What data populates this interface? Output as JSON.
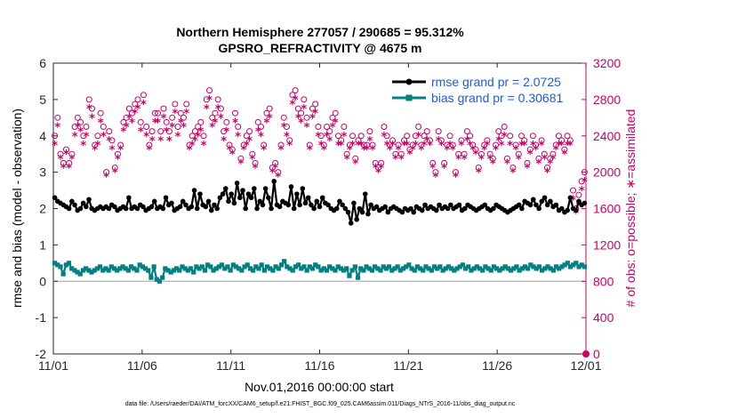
{
  "titles": {
    "line1": "Northern Hemisphere 277057 / 290685 = 95.312%",
    "line2": "GPSRO_REFRACTIVITY @ 4675 m"
  },
  "footnote": "data file: /Users/raeder/DAI/ATM_forcXX/CAM6_setup/f.e21.FHIST_BGC.f09_025.CAM6assim.011/Diags_NTrS_2016-11/obs_diag_output.nc",
  "colors": {
    "rmse": "#000000",
    "bias": "#008080",
    "obs_count": "#cc0066",
    "zero_line": "#b0b0b0"
  },
  "chart_data": {
    "type": "line",
    "xlabel": "Nov.01,2016 00:00:00 start",
    "ylabel_left": "rmse and bias (model - observation)",
    "ylabel_right": "# of obs: o=possible; ∗=assimilated",
    "x_ticks": [
      "11/01",
      "11/06",
      "11/11",
      "11/16",
      "11/21",
      "11/26",
      "12/01"
    ],
    "x_range_days": [
      0,
      30
    ],
    "ylim_left": [
      -2,
      6
    ],
    "yticks_left": [
      "-2",
      "-1",
      "0",
      "1",
      "2",
      "3",
      "4",
      "5",
      "6"
    ],
    "ylim_right": [
      0,
      3200
    ],
    "yticks_right": [
      "0",
      "400",
      "800",
      "1200",
      "1600",
      "2000",
      "2400",
      "2800",
      "3200"
    ],
    "legend_placement": "top-right",
    "series": [
      {
        "name": "rmse grand pr = 2.0725",
        "axis": "left",
        "values": [
          2.3,
          2.2,
          2.15,
          2.1,
          2.05,
          2.0,
          2.2,
          2.1,
          1.95,
          2.0,
          2.15,
          2.05,
          2.25,
          2.0,
          1.95,
          2.0,
          2.05,
          2.0,
          2.05,
          2.0,
          2.1,
          2.05,
          1.95,
          2.0,
          2.05,
          2.0,
          2.3,
          2.0,
          2.05,
          2.0,
          2.1,
          2.05,
          1.95,
          2.0,
          2.05,
          2.2,
          2.0,
          2.05,
          2.0,
          2.3,
          2.1,
          2.15,
          1.95,
          2.0,
          2.05,
          2.2,
          2.1,
          2.0,
          2.05,
          2.5,
          2.0,
          2.4,
          2.1,
          2.05,
          2.2,
          1.95,
          2.1,
          2.0,
          2.3,
          2.4,
          2.55,
          2.2,
          2.4,
          2.15,
          2.7,
          2.3,
          2.5,
          2.0,
          2.4,
          2.3,
          2.55,
          2.0,
          2.2,
          2.1,
          2.55,
          2.3,
          2.0,
          2.75,
          2.1,
          2.05,
          2.2,
          2.15,
          2.1,
          2.6,
          2.0,
          2.4,
          2.1,
          2.55,
          2.15,
          2.3,
          2.1,
          2.0,
          2.2,
          2.05,
          2.3,
          2.15,
          2.1,
          2.0,
          1.95,
          2.0,
          2.2,
          2.1,
          2.0,
          1.9,
          1.6,
          2.15,
          1.7,
          2.0,
          1.9,
          2.4,
          1.85,
          2.1,
          2.0,
          2.05,
          1.95,
          2.0,
          2.05,
          1.9,
          2.0,
          2.05,
          2.0,
          1.95,
          1.9,
          2.0,
          1.95,
          2.0,
          1.9,
          2.05,
          2.0,
          1.95,
          2.1,
          2.0,
          2.05,
          2.0,
          1.95,
          2.1,
          2.0,
          2.05,
          2.0,
          2.1,
          2.0,
          2.05,
          2.1,
          1.95,
          2.0,
          2.1,
          2.05,
          2.0,
          1.95,
          2.0,
          2.05,
          2.1,
          2.0,
          1.95,
          2.0,
          2.1,
          2.05,
          2.0,
          1.95,
          1.9,
          1.95,
          2.0,
          2.05,
          2.1,
          2.0,
          2.2,
          2.15,
          2.1,
          2.25,
          2.1,
          2.0,
          2.2,
          2.3,
          2.1,
          2.2,
          2.05,
          2.1,
          1.95,
          2.0,
          1.9,
          1.95,
          2.3,
          2.0,
          1.95,
          2.2,
          2.1,
          2.15
        ]
      },
      {
        "name": "bias grand pr = 0.30681",
        "axis": "left",
        "values": [
          0.5,
          0.45,
          0.4,
          0.2,
          0.45,
          0.5,
          0.35,
          0.3,
          0.25,
          0.2,
          0.3,
          0.35,
          0.3,
          0.25,
          0.3,
          0.35,
          0.4,
          0.3,
          0.35,
          0.3,
          0.4,
          0.35,
          0.3,
          0.35,
          0.4,
          0.35,
          0.3,
          0.4,
          0.35,
          0.3,
          0.45,
          0.4,
          0.35,
          0.3,
          0.1,
          0.4,
          0.05,
          0.0,
          0.1,
          0.35,
          0.3,
          0.25,
          0.3,
          0.35,
          0.3,
          0.4,
          0.35,
          0.3,
          0.35,
          0.25,
          0.4,
          0.35,
          0.4,
          0.3,
          0.45,
          0.4,
          0.3,
          0.35,
          0.4,
          0.45,
          0.35,
          0.4,
          0.3,
          0.45,
          0.4,
          0.35,
          0.3,
          0.4,
          0.45,
          0.35,
          0.3,
          0.4,
          0.35,
          0.45,
          0.3,
          0.4,
          0.35,
          0.3,
          0.4,
          0.35,
          0.45,
          0.55,
          0.4,
          0.35,
          0.3,
          0.4,
          0.45,
          0.35,
          0.4,
          0.3,
          0.4,
          0.35,
          0.45,
          0.4,
          0.3,
          0.35,
          0.3,
          0.4,
          0.35,
          0.3,
          0.4,
          0.35,
          0.3,
          0.35,
          0.15,
          0.3,
          0.4,
          0.1,
          0.35,
          0.3,
          0.4,
          0.35,
          0.3,
          0.4,
          0.35,
          0.3,
          0.4,
          0.35,
          0.4,
          0.3,
          0.35,
          0.4,
          0.3,
          0.35,
          0.4,
          0.45,
          0.35,
          0.3,
          0.4,
          0.35,
          0.3,
          0.4,
          0.35,
          0.3,
          0.4,
          0.35,
          0.4,
          0.3,
          0.35,
          0.4,
          0.35,
          0.3,
          0.35,
          0.4,
          0.45,
          0.35,
          0.4,
          0.3,
          0.35,
          0.4,
          0.35,
          0.3,
          0.4,
          0.35,
          0.3,
          0.4,
          0.35,
          0.3,
          0.35,
          0.4,
          0.35,
          0.3,
          0.35,
          0.4,
          0.3,
          0.35,
          0.4,
          0.35,
          0.45,
          0.4,
          0.35,
          0.4,
          0.3,
          0.35,
          0.4,
          0.35,
          0.3,
          0.4,
          0.35,
          0.4,
          0.45,
          0.5,
          0.4,
          0.45,
          0.5,
          0.4,
          0.45,
          0.4
        ]
      },
      {
        "name": "possible",
        "axis": "right",
        "marker": "circle",
        "values": [
          2400,
          2600,
          2200,
          2100,
          2250,
          2100,
          2200,
          2500,
          2600,
          2550,
          2400,
          2500,
          2800,
          2700,
          2300,
          2400,
          2650,
          2500,
          2000,
          2450,
          2350,
          2050,
          2200,
          2300,
          2550,
          2600,
          2700,
          2650,
          2750,
          2800,
          2550,
          2850,
          2500,
          2300,
          2450,
          2650,
          2650,
          2450,
          2700,
          2550,
          2450,
          2600,
          2750,
          2500,
          2650,
          2600,
          2750,
          2300,
          2400,
          2450,
          2500,
          2550,
          2400,
          2800,
          2900,
          2600,
          2650,
          2800,
          2700,
          2450,
          2550,
          2300,
          2250,
          2650,
          2500,
          2150,
          2300,
          2400,
          2450,
          2200,
          2100,
          2550,
          2500,
          2300,
          2650,
          2700,
          2050,
          2100,
          2000,
          2300,
          2600,
          2500,
          2350,
          2850,
          2900,
          2700,
          2650,
          2800,
          2600,
          2300,
          2700,
          2750,
          2500,
          2400,
          2300,
          2500,
          2450,
          2600,
          2650,
          2400,
          2350,
          2500,
          2200,
          2300,
          2400,
          2150,
          2350,
          2400,
          2300,
          2300,
          2450,
          2300,
          2100,
          2050,
          2100,
          2500,
          2400,
          2300,
          2350,
          2200,
          2300,
          2200,
          2350,
          2400,
          2250,
          2300,
          2400,
          2500,
          2300,
          2400,
          2450,
          2350,
          2100,
          2000,
          2450,
          2350,
          2100,
          2300,
          2400,
          2300,
          2000,
          2200,
          2350,
          2200,
          2450,
          2400,
          2300,
          2250,
          2050,
          2200,
          2300,
          2350,
          2200,
          2150,
          2300,
          2450,
          2400,
          2500,
          2150,
          2400,
          2050,
          2300,
          2200,
          2400,
          2350,
          2100,
          2250,
          2400,
          2300,
          2150,
          2350,
          2200,
          2050,
          2150,
          2200,
          2300,
          2400,
          2350,
          2250,
          2400,
          2350,
          1800,
          1600,
          1750,
          1900,
          2000
        ]
      },
      {
        "name": "assimilated",
        "axis": "right",
        "marker": "asterisk",
        "values": [
          2300,
          2500,
          2150,
          2050,
          2200,
          2050,
          2150,
          2400,
          2500,
          2450,
          2300,
          2400,
          2700,
          2600,
          2250,
          2300,
          2550,
          2400,
          1950,
          2350,
          2250,
          2000,
          2150,
          2250,
          2450,
          2500,
          2600,
          2550,
          2650,
          2700,
          2450,
          2750,
          2400,
          2250,
          2350,
          2550,
          2550,
          2350,
          2600,
          2450,
          2350,
          2500,
          2650,
          2400,
          2550,
          2500,
          2650,
          2250,
          2300,
          2350,
          2400,
          2450,
          2300,
          2700,
          2800,
          2500,
          2550,
          2700,
          2600,
          2350,
          2450,
          2250,
          2200,
          2550,
          2400,
          2100,
          2250,
          2300,
          2350,
          2150,
          2050,
          2450,
          2400,
          2250,
          2550,
          2600,
          2000,
          2050,
          1950,
          2250,
          2500,
          2400,
          2300,
          2750,
          2800,
          2600,
          2550,
          2700,
          2500,
          2250,
          2600,
          2650,
          2400,
          2300,
          2250,
          2400,
          2350,
          2500,
          2550,
          2300,
          2300,
          2400,
          2150,
          2250,
          2300,
          2100,
          2300,
          2300,
          2250,
          2250,
          2350,
          2250,
          2050,
          2000,
          2050,
          2400,
          2300,
          2250,
          2300,
          2150,
          2250,
          2150,
          2300,
          2300,
          2200,
          2250,
          2300,
          2400,
          2250,
          2300,
          2350,
          2300,
          2050,
          1950,
          2350,
          2300,
          2050,
          2250,
          2300,
          2250,
          1950,
          2150,
          2300,
          2150,
          2350,
          2300,
          2250,
          2200,
          2000,
          2150,
          2250,
          2300,
          2150,
          2100,
          2250,
          2350,
          2300,
          2400,
          2100,
          2300,
          2000,
          2250,
          2150,
          2300,
          2300,
          2050,
          2200,
          2300,
          2250,
          2100,
          2300,
          2150,
          2000,
          2100,
          2150,
          2250,
          2300,
          2300,
          2200,
          2300,
          2300,
          1700,
          1550,
          1650,
          1800,
          1900
        ]
      }
    ]
  }
}
